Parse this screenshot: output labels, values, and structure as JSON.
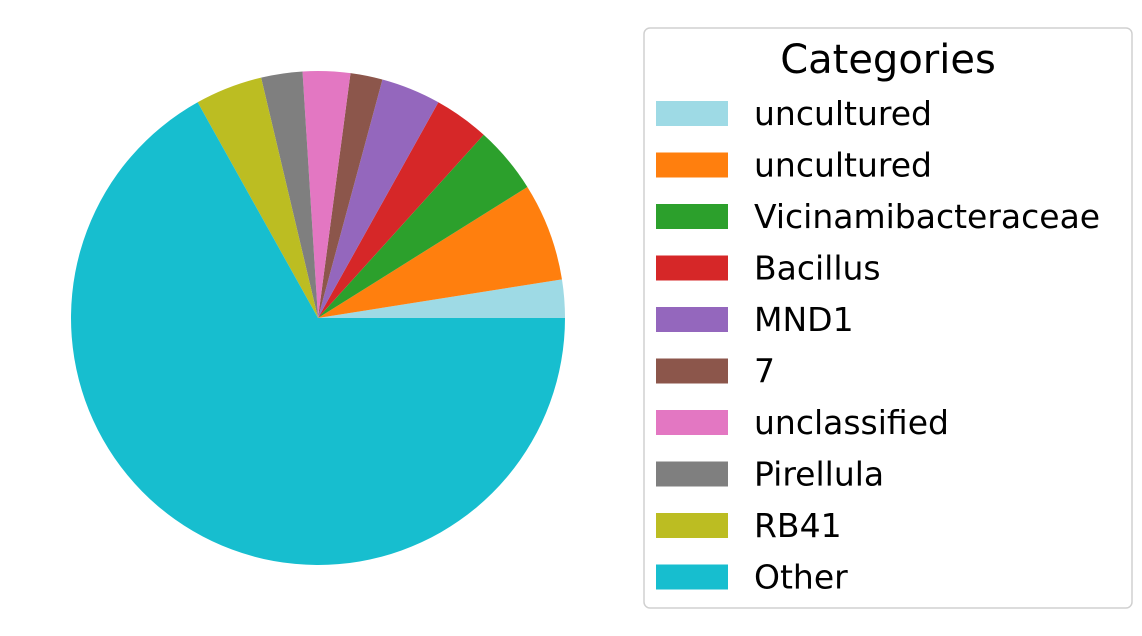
{
  "chart_data": {
    "type": "pie",
    "title": "",
    "legend": {
      "title": "Categories",
      "placement": "right"
    },
    "start_angle_deg": 0,
    "direction": "counterclockwise",
    "slices": [
      {
        "label": "uncultured",
        "value": 2.5,
        "color": "#9edae5"
      },
      {
        "label": "uncultured",
        "value": 6.4,
        "color": "#ff7f0e"
      },
      {
        "label": "Vicinamibacteraceae",
        "value": 4.4,
        "color": "#2ca02c"
      },
      {
        "label": "Bacillus",
        "value": 3.6,
        "color": "#d62728"
      },
      {
        "label": "MND1",
        "value": 3.9,
        "color": "#9467bd"
      },
      {
        "label": "7",
        "value": 2.1,
        "color": "#8c564b"
      },
      {
        "label": "unclassified",
        "value": 3.1,
        "color": "#e377c2"
      },
      {
        "label": "Pirellula",
        "value": 2.7,
        "color": "#7f7f7f"
      },
      {
        "label": "RB41",
        "value": 4.4,
        "color": "#bcbd22"
      },
      {
        "label": "Other",
        "value": 66.9,
        "color": "#17becf"
      }
    ]
  }
}
